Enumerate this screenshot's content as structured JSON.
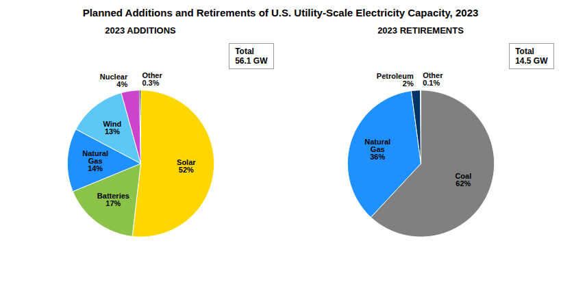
{
  "title": "Planned Additions and Retirements of U.S. Utility-Scale Electricity Capacity, 2023",
  "chart_data": [
    {
      "type": "pie",
      "title": "2023 ADDITIONS",
      "categories": [
        "Solar",
        "Batteries",
        "Natural\nGas",
        "Wind",
        "Nuclear",
        "Other"
      ],
      "values": [
        52,
        17,
        14,
        13,
        4,
        0.3
      ],
      "value_labels": [
        "52%",
        "17%",
        "14%",
        "13%",
        "4%",
        "0.3%"
      ],
      "colors": [
        "#FFD700",
        "#8BC34A",
        "#1E90FF",
        "#5BC8F5",
        "#CC44CC",
        "#111111"
      ],
      "data_labels": true,
      "annotation": "Total\n56.1 GW"
    },
    {
      "type": "pie",
      "title": "2023 RETIREMENTS",
      "categories": [
        "Coal",
        "Natural\nGas",
        "Petroleum",
        "Other"
      ],
      "values": [
        62,
        36,
        2,
        0.1
      ],
      "value_labels": [
        "62%",
        "36%",
        "2%",
        "0.1%"
      ],
      "colors": [
        "#808080",
        "#1E90FF",
        "#003366",
        "#A0A0A0"
      ],
      "data_labels": true,
      "annotation": "Total\n14.5 GW"
    }
  ]
}
